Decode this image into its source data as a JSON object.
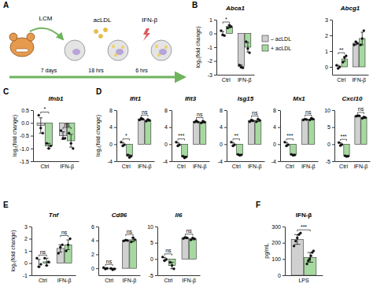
{
  "panel_labels": [
    "A",
    "B",
    "C",
    "D",
    "E",
    "F"
  ],
  "diagram": {
    "treatments": [
      "LCM",
      "acLDL",
      "IFN-β"
    ],
    "durations": [
      "7 days",
      "18 hrs",
      "6 hrs"
    ]
  },
  "chart_data": [
    {
      "type": "bar",
      "title": "Abca1",
      "y_label": "log₂(fold change)",
      "categories": [
        "Ctrl",
        "IFN-β"
      ],
      "series": [
        {
          "name": "– acLDL",
          "color": "#d0d0d0",
          "values": [
            0,
            -2.4
          ],
          "errors": [
            0.15,
            0.1
          ],
          "points": [
            [
              0.2,
              -0.1,
              -0.15
            ],
            [
              -2.3,
              -2.45,
              -2.5
            ]
          ]
        },
        {
          "name": "+ acLDL",
          "color": "#a6d9a0",
          "values": [
            0.5,
            -1.0
          ],
          "errors": [
            0.1,
            0.35
          ],
          "points": [
            [
              0.4,
              0.6,
              0.5
            ],
            [
              -0.6,
              -1.1,
              -1.4
            ]
          ]
        }
      ],
      "ylim": [
        -3,
        1
      ],
      "yticks": [
        -3,
        -2,
        -1,
        0,
        1
      ],
      "annotations": [
        "*",
        null
      ],
      "legend": "right"
    },
    {
      "type": "bar",
      "title": "Abcg1",
      "categories": [
        "Ctrl",
        "IFN-β"
      ],
      "series": [
        {
          "color": "#d0d0d0",
          "values": [
            0,
            1.5
          ],
          "errors": [
            0.1,
            0.1
          ],
          "points": [
            [
              0.1,
              -0.1,
              0.0
            ],
            [
              1.4,
              1.6,
              1.5
            ]
          ]
        },
        {
          "color": "#a6d9a0",
          "values": [
            0.5,
            1.8
          ],
          "errors": [
            0.15,
            0.4
          ],
          "points": [
            [
              0.3,
              0.6,
              0.7
            ],
            [
              1.4,
              1.8,
              2.3
            ]
          ]
        }
      ],
      "ylim": [
        -0.5,
        3
      ],
      "yticks": [
        0,
        1,
        2,
        3
      ],
      "annotations": [
        "**",
        null
      ]
    },
    {
      "type": "bar",
      "title": "Ifnb1",
      "y_label": "log₂(fold change)",
      "categories": [
        "Ctrl",
        "IFN-β"
      ],
      "series": [
        {
          "color": "#d0d0d0",
          "values": [
            -0.1,
            -0.5
          ],
          "errors": [
            0.3,
            0.15
          ],
          "points": [
            [
              0.3,
              -0.2,
              -0.4
            ],
            [
              -0.3,
              -0.6,
              -0.6
            ]
          ]
        },
        {
          "color": "#a6d9a0",
          "values": [
            -0.9,
            -0.7
          ],
          "errors": [
            0.1,
            0.25
          ],
          "points": [
            [
              -0.8,
              -1.0,
              -0.9
            ],
            [
              -0.4,
              -0.8,
              -1.0
            ]
          ]
        }
      ],
      "ylim": [
        -1.5,
        0.5
      ],
      "yticks": [
        -1.5,
        {
          "value": -1,
          "label": "-1.0"
        },
        -0.5,
        {
          "value": 0,
          "label": "0.0"
        },
        0.5
      ],
      "annotations": [
        "*",
        "ns"
      ]
    },
    {
      "type": "bar",
      "title": "Ifit1",
      "y_label": "log₂(fold change)",
      "categories": [
        "Ctrl",
        "IFN-β"
      ],
      "series": [
        {
          "color": "#d0d0d0",
          "values": [
            0,
            5.9
          ],
          "errors": [
            0.4,
            0.2
          ],
          "points": [
            [
              0.5,
              -0.4,
              -0.1
            ],
            [
              5.7,
              6.1,
              5.9
            ]
          ]
        },
        {
          "color": "#a6d9a0",
          "values": [
            -2.8,
            5.6
          ],
          "errors": [
            0.3,
            0.2
          ],
          "points": [
            [
              -2.5,
              -3.1,
              -2.8
            ],
            [
              5.4,
              5.8,
              5.6
            ]
          ]
        }
      ],
      "ylim": [
        -4,
        8
      ],
      "yticks": [
        -4,
        0,
        4,
        8
      ],
      "annotations": [
        "*",
        "ns"
      ]
    },
    {
      "type": "bar",
      "title": "Ifit3",
      "categories": [
        "Ctrl",
        "IFN-β"
      ],
      "series": [
        {
          "color": "#d0d0d0",
          "values": [
            0,
            5.3
          ],
          "errors": [
            0.4,
            0.15
          ],
          "points": [
            [
              0.5,
              -0.4,
              -0.1
            ],
            [
              5.2,
              5.5,
              5.2
            ]
          ]
        },
        {
          "color": "#a6d9a0",
          "values": [
            -3.0,
            5.2
          ],
          "errors": [
            0.2,
            0.2
          ],
          "points": [
            [
              -2.8,
              -3.2,
              -3.0
            ],
            [
              5.0,
              5.4,
              5.2
            ]
          ]
        }
      ],
      "ylim": [
        -4,
        8
      ],
      "yticks": [
        -4,
        0,
        4,
        8
      ],
      "annotations": [
        "***",
        "ns"
      ]
    },
    {
      "type": "bar",
      "title": "Isg15",
      "categories": [
        "Ctrl",
        "IFN-β"
      ],
      "series": [
        {
          "color": "#d0d0d0",
          "values": [
            0,
            5.5
          ],
          "errors": [
            0.4,
            0.2
          ],
          "points": [
            [
              0.5,
              -0.4,
              -0.1
            ],
            [
              5.3,
              5.7,
              5.5
            ]
          ]
        },
        {
          "color": "#a6d9a0",
          "values": [
            -2.5,
            5.6
          ],
          "errors": [
            0.1,
            0.3
          ],
          "points": [
            [
              -2.4,
              -2.6,
              -2.5
            ],
            [
              5.3,
              5.9,
              5.6
            ]
          ]
        }
      ],
      "ylim": [
        -4,
        8
      ],
      "yticks": [
        -4,
        0,
        4,
        8
      ],
      "annotations": [
        "**",
        "ns"
      ]
    },
    {
      "type": "bar",
      "title": "Mx1",
      "categories": [
        "Ctrl",
        "IFN-β"
      ],
      "series": [
        {
          "color": "#d0d0d0",
          "values": [
            0,
            5.8
          ],
          "errors": [
            0.4,
            0.1
          ],
          "points": [
            [
              0.5,
              -0.4,
              -0.1
            ],
            [
              5.7,
              5.9,
              5.8
            ]
          ]
        },
        {
          "color": "#a6d9a0",
          "values": [
            -2.5,
            5.9
          ],
          "errors": [
            0.1,
            0.2
          ],
          "points": [
            [
              -2.4,
              -2.6,
              -2.5
            ],
            [
              5.7,
              6.1,
              5.9
            ]
          ]
        }
      ],
      "ylim": [
        -4,
        8
      ],
      "yticks": [
        -4,
        0,
        4,
        8
      ],
      "annotations": [
        "***",
        "ns"
      ]
    },
    {
      "type": "bar",
      "title": "Cxcl10",
      "categories": [
        "Ctrl",
        "IFN-β"
      ],
      "series": [
        {
          "color": "#d0d0d0",
          "values": [
            0,
            8.3
          ],
          "errors": [
            0.4,
            0.1
          ],
          "points": [
            [
              0.5,
              -0.4,
              -0.1
            ],
            [
              8.2,
              8.4,
              8.3
            ]
          ]
        },
        {
          "color": "#a6d9a0",
          "values": [
            -3.5,
            7.8
          ],
          "errors": [
            0.1,
            0.2
          ],
          "points": [
            [
              -3.4,
              -3.6,
              -3.5
            ],
            [
              7.6,
              8.0,
              7.8
            ]
          ]
        }
      ],
      "ylim": [
        -5,
        10
      ],
      "yticks": [
        -5,
        0,
        5,
        10
      ],
      "annotations": [
        "***",
        "ns"
      ]
    },
    {
      "type": "bar",
      "title": "Tnf",
      "y_label": "log₂(fold change)",
      "categories": [
        "Ctrl",
        "IFN-β"
      ],
      "series": [
        {
          "color": "#d0d0d0",
          "values": [
            0,
            1.2
          ],
          "errors": [
            0.3,
            0.3
          ],
          "points": [
            [
              0.4,
              -0.3,
              -0.1
            ],
            [
              0.8,
              1.3,
              1.5
            ]
          ]
        },
        {
          "color": "#a6d9a0",
          "values": [
            0.1,
            1.5
          ],
          "errors": [
            0.3,
            0.4
          ],
          "points": [
            [
              0.4,
              -0.2,
              0.1
            ],
            [
              1.0,
              1.5,
              2.0
            ]
          ]
        }
      ],
      "ylim": [
        -1,
        3
      ],
      "yticks": [
        -1,
        0,
        1,
        2,
        3
      ],
      "annotations": [
        "ns",
        "ns"
      ]
    },
    {
      "type": "bar",
      "title": "Cd86",
      "categories": [
        "Ctrl",
        "IFN-β"
      ],
      "series": [
        {
          "color": "#d0d0d0",
          "values": [
            0,
            4.0
          ],
          "errors": [
            0.1,
            0.05
          ],
          "points": [
            [
              0.1,
              -0.1,
              0.0
            ],
            [
              3.95,
              4.05,
              4.0
            ]
          ]
        },
        {
          "color": "#a6d9a0",
          "values": [
            -0.1,
            4.1
          ],
          "errors": [
            0.1,
            0.3
          ],
          "points": [
            [
              0.0,
              -0.2,
              -0.1
            ],
            [
              3.8,
              4.4,
              4.1
            ]
          ]
        }
      ],
      "ylim": [
        -1,
        6
      ],
      "yticks": [
        0,
        2,
        4,
        6
      ],
      "annotations": [
        "ns",
        "ns"
      ]
    },
    {
      "type": "bar",
      "title": "Il6",
      "categories": [
        "Ctrl",
        "IFN-β"
      ],
      "series": [
        {
          "color": "#d0d0d0",
          "values": [
            0,
            6.5
          ],
          "errors": [
            0.5,
            0.2
          ],
          "points": [
            [
              0.6,
              -0.5,
              -0.1
            ],
            [
              6.3,
              6.7,
              6.5
            ]
          ]
        },
        {
          "color": "#a6d9a0",
          "values": [
            -2.0,
            6.2
          ],
          "errors": [
            1.0,
            0.3
          ],
          "points": [
            [
              -1.0,
              -2.0,
              -3.0
            ],
            [
              5.9,
              6.5,
              6.2
            ]
          ]
        }
      ],
      "ylim": [
        -5,
        10
      ],
      "yticks": [
        -5,
        0,
        5,
        10
      ],
      "annotations": [
        "ns",
        "ns"
      ]
    },
    {
      "type": "bar",
      "title": "IFN-β",
      "y_label": "pg/mL",
      "categories": [
        "LPS"
      ],
      "series": [
        {
          "color": "#d0d0d0",
          "values": [
            220
          ],
          "errors": [
            30
          ],
          "points": [
            [
              180,
              210,
              230,
              250,
              260
            ]
          ]
        },
        {
          "color": "#a6d9a0",
          "values": [
            110
          ],
          "errors": [
            30
          ],
          "points": [
            [
              70,
              90,
              100,
              120,
              140,
              150
            ]
          ]
        }
      ],
      "ylim": [
        0,
        300
      ],
      "yticks": [
        0,
        100,
        200,
        300
      ],
      "annotations": [
        "***"
      ]
    }
  ]
}
